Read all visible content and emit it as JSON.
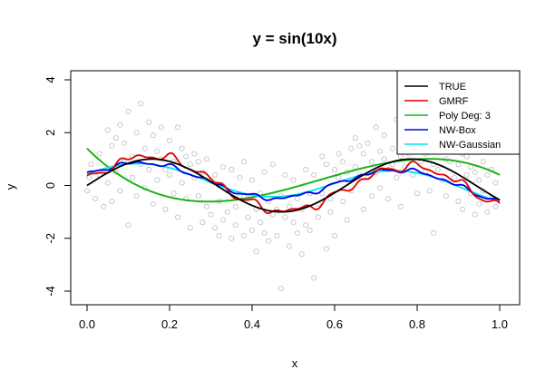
{
  "chart_data": {
    "type": "scatter",
    "title": "y = sin(10x)",
    "xlabel": "x",
    "ylabel": "y",
    "xlim": [
      0,
      1
    ],
    "ylim": [
      -4,
      4
    ],
    "xticks": [
      "0.0",
      "0.2",
      "0.4",
      "0.6",
      "0.8",
      "1.0"
    ],
    "yticks": [
      "-4",
      "-2",
      "0",
      "2",
      "4"
    ],
    "legend_position": "top-right",
    "grid": false,
    "points": {
      "color": "#bdbdbd",
      "x": [
        0.0,
        0.005,
        0.01,
        0.02,
        0.03,
        0.03,
        0.04,
        0.05,
        0.05,
        0.06,
        0.06,
        0.07,
        0.07,
        0.08,
        0.08,
        0.09,
        0.09,
        0.1,
        0.1,
        0.11,
        0.11,
        0.12,
        0.12,
        0.13,
        0.13,
        0.14,
        0.14,
        0.15,
        0.15,
        0.16,
        0.16,
        0.17,
        0.17,
        0.18,
        0.18,
        0.19,
        0.19,
        0.2,
        0.2,
        0.21,
        0.21,
        0.22,
        0.22,
        0.23,
        0.23,
        0.24,
        0.24,
        0.25,
        0.25,
        0.26,
        0.26,
        0.27,
        0.27,
        0.28,
        0.28,
        0.29,
        0.29,
        0.3,
        0.3,
        0.31,
        0.31,
        0.32,
        0.32,
        0.33,
        0.33,
        0.34,
        0.34,
        0.35,
        0.35,
        0.36,
        0.36,
        0.37,
        0.37,
        0.38,
        0.38,
        0.39,
        0.39,
        0.4,
        0.4,
        0.41,
        0.41,
        0.42,
        0.42,
        0.43,
        0.43,
        0.44,
        0.44,
        0.45,
        0.45,
        0.46,
        0.46,
        0.47,
        0.47,
        0.48,
        0.48,
        0.49,
        0.49,
        0.5,
        0.5,
        0.51,
        0.51,
        0.52,
        0.52,
        0.53,
        0.53,
        0.54,
        0.54,
        0.55,
        0.55,
        0.56,
        0.56,
        0.57,
        0.57,
        0.58,
        0.58,
        0.59,
        0.59,
        0.6,
        0.6,
        0.61,
        0.61,
        0.62,
        0.62,
        0.63,
        0.63,
        0.64,
        0.64,
        0.65,
        0.65,
        0.66,
        0.66,
        0.67,
        0.67,
        0.68,
        0.68,
        0.69,
        0.69,
        0.7,
        0.7,
        0.71,
        0.71,
        0.72,
        0.72,
        0.73,
        0.73,
        0.74,
        0.74,
        0.75,
        0.75,
        0.76,
        0.76,
        0.77,
        0.77,
        0.78,
        0.78,
        0.79,
        0.79,
        0.8,
        0.8,
        0.81,
        0.81,
        0.82,
        0.82,
        0.83,
        0.83,
        0.84,
        0.84,
        0.85,
        0.85,
        0.86,
        0.86,
        0.87,
        0.87,
        0.88,
        0.88,
        0.89,
        0.89,
        0.9,
        0.9,
        0.91,
        0.91,
        0.92,
        0.92,
        0.93,
        0.93,
        0.94,
        0.94,
        0.95,
        0.95,
        0.96,
        0.96,
        0.97,
        0.97,
        0.98,
        0.98,
        0.99,
        0.99
      ],
      "y": [
        -0.2,
        0.3,
        0.8,
        -0.5,
        1.2,
        0.4,
        -0.8,
        2.1,
        0.1,
        1.5,
        -0.6,
        1.8,
        0.5,
        2.3,
        -0.2,
        1.6,
        0.9,
        2.8,
        -1.5,
        1.1,
        0.3,
        2.0,
        -0.4,
        3.1,
        0.8,
        1.4,
        -0.1,
        2.4,
        0.6,
        1.9,
        -0.7,
        1.3,
        0.2,
        2.2,
        1.0,
        0.6,
        -0.9,
        1.7,
        0.4,
        0.9,
        -0.3,
        2.2,
        -1.2,
        1.4,
        0.1,
        1.1,
        -0.5,
        0.8,
        -1.6,
        0.3,
        1.2,
        -0.4,
        0.9,
        -1.4,
        0.5,
        -0.8,
        1.0,
        -1.1,
        0.2,
        -1.6,
        0.4,
        -0.6,
        -1.9,
        0.7,
        -1.3,
        -0.2,
        -1.0,
        -2.0,
        0.6,
        -0.8,
        -1.5,
        0.3,
        -0.4,
        -1.9,
        0.9,
        -1.2,
        -0.5,
        -1.7,
        0.2,
        -0.9,
        -2.5,
        -0.3,
        -1.4,
        0.5,
        -1.8,
        -0.6,
        -2.1,
        0.8,
        -1.1,
        -0.9,
        -1.9,
        -0.4,
        -3.9,
        -1.2,
        0.4,
        -2.3,
        -0.8,
        -1.4,
        0.2,
        -1.8,
        -0.5,
        -2.6,
        -0.9,
        0.6,
        -1.5,
        -0.3,
        -1.7,
        -3.5,
        0.4,
        -1.2,
        -0.7,
        1.1,
        -0.3,
        -2.4,
        0.8,
        -0.5,
        -1.0,
        0.6,
        -1.9,
        0.3,
        1.2,
        -0.6,
        0.9,
        -1.3,
        0.5,
        1.4,
        -0.2,
        0.7,
        1.8,
        0.4,
        1.5,
        -0.9,
        1.2,
        0.3,
        1.6,
        -0.4,
        0.9,
        2.2,
        0.5,
        1.3,
        -0.1,
        1.0,
        1.9,
        0.6,
        -0.5,
        1.4,
        0.8,
        2.5,
        0.3,
        1.1,
        -0.8,
        1.6,
        0.7,
        3.3,
        1.2,
        0.4,
        1.9,
        -0.3,
        1.4,
        0.9,
        2.1,
        0.5,
        1.2,
        -0.2,
        1.7,
        0.8,
        -1.8,
        1.3,
        0.6,
        2.5,
        0.2,
        1.0,
        -0.4,
        1.5,
        0.9,
        0.3,
        1.8,
        -0.6,
        0.8,
        1.2,
        -0.9,
        0.4,
        1.1,
        -0.3,
        0.7,
        -1.1,
        0.5,
        0.2,
        -0.7,
        0.9,
        -0.2,
        0.4,
        -1.0,
        0.6,
        -0.5,
        0.1,
        -0.8
      ]
    },
    "series": [
      {
        "name": "TRUE",
        "color": "#000000",
        "kind": "true"
      },
      {
        "name": "GMRF",
        "color": "#e00000",
        "kind": "gmrf"
      },
      {
        "name": "Poly Deg: 3",
        "color": "#1ab31a",
        "kind": "poly"
      },
      {
        "name": "NW-Box",
        "color": "#0000e6",
        "kind": "nwbox"
      },
      {
        "name": "NW-Gaussian",
        "color": "#00e5ee",
        "kind": "nwgauss"
      }
    ]
  }
}
